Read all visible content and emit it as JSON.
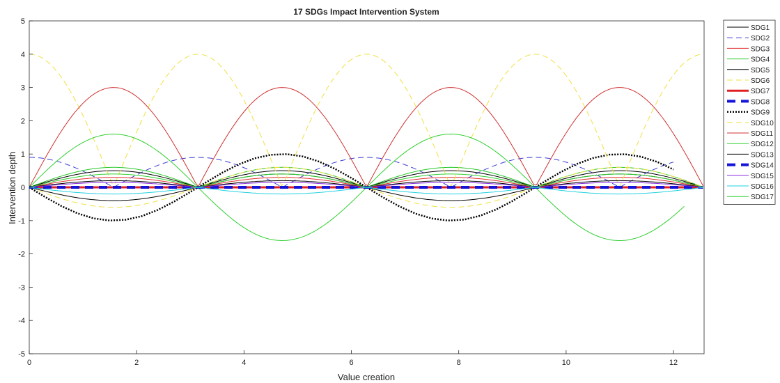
{
  "chart_data": {
    "type": "line",
    "title": "17 SDGs Impact Intervention System",
    "xlabel": "Value creation",
    "ylabel": "Intervention depth",
    "xlim": [
      0,
      12.57
    ],
    "ylim": [
      -5,
      5
    ],
    "xticks": [
      "0",
      "2",
      "4",
      "6",
      "8",
      "10",
      "12"
    ],
    "yticks": [
      "-5",
      "-4",
      "-3",
      "-2",
      "-1",
      "0",
      "1",
      "2",
      "3",
      "4",
      "5"
    ],
    "grid": false,
    "legend_position": "outside-right",
    "series": [
      {
        "name": "SDG1",
        "color": "#000000",
        "dash": "solid",
        "width": 1,
        "formula": "-0.4*sin(x)",
        "x_end": 12.57
      },
      {
        "name": "SDG2",
        "color": "#3b3bd6",
        "dash": "dashed",
        "width": 1,
        "formula": "0.9*|cos(x)|",
        "x_end": 12.0
      },
      {
        "name": "SDG3",
        "color": "#e03030",
        "dash": "solid",
        "width": 1,
        "formula": "0.3*|sin(x)|",
        "x_end": 12.57
      },
      {
        "name": "SDG4",
        "color": "#28c828",
        "dash": "solid",
        "width": 1,
        "formula": "0.6*|sin(x)|",
        "x_end": 12.57
      },
      {
        "name": "SDG5",
        "color": "#000000",
        "dash": "solid",
        "width": 1,
        "formula": "0.5*|sin(x)|",
        "x_end": 12.57
      },
      {
        "name": "SDG6",
        "color": "#f0e040",
        "dash": "dashed",
        "width": 1,
        "formula": "-0.6*sin(x)",
        "x_end": 12.57
      },
      {
        "name": "SDG7",
        "color": "#e02020",
        "dash": "solid",
        "width": 3,
        "formula": "0",
        "x_end": 12.57
      },
      {
        "name": "SDG8",
        "color": "#1414d8",
        "dash": "dashed",
        "width": 4,
        "formula": "0",
        "x_end": 12.57
      },
      {
        "name": "SDG9",
        "color": "#000000",
        "dash": "dotted",
        "width": 2.5,
        "formula": "-1*sin(x)",
        "x_end": 12.0
      },
      {
        "name": "SDG10",
        "color": "#f0e040",
        "dash": "dashed",
        "width": 1,
        "formula": "4*|cos(x)|",
        "x_end": 12.57
      },
      {
        "name": "SDG11",
        "color": "#d03030",
        "dash": "solid",
        "width": 1,
        "formula": "3*|sin(x)|",
        "x_end": 12.57
      },
      {
        "name": "SDG12",
        "color": "#30d030",
        "dash": "solid",
        "width": 1,
        "formula": "1.6*sin(x)",
        "x_end": 12.2
      },
      {
        "name": "SDG13",
        "color": "#000000",
        "dash": "solid",
        "width": 1,
        "formula": "0.2*|sin(x)|",
        "x_end": 12.57
      },
      {
        "name": "SDG14",
        "color": "#1414d8",
        "dash": "dashed",
        "width": 4,
        "formula": "0",
        "x_end": 12.57
      },
      {
        "name": "SDG15",
        "color": "#8a2be2",
        "dash": "solid",
        "width": 1,
        "formula": "0.15*|sin(x)|",
        "x_end": 12.57
      },
      {
        "name": "SDG16",
        "color": "#20d0e0",
        "dash": "solid",
        "width": 1,
        "formula": "-0.2*|sin(x)|",
        "x_end": 12.57
      },
      {
        "name": "SDG17",
        "color": "#30d030",
        "dash": "solid",
        "width": 1,
        "formula": "0.4*|sin(x)|",
        "x_end": 12.57
      }
    ]
  }
}
